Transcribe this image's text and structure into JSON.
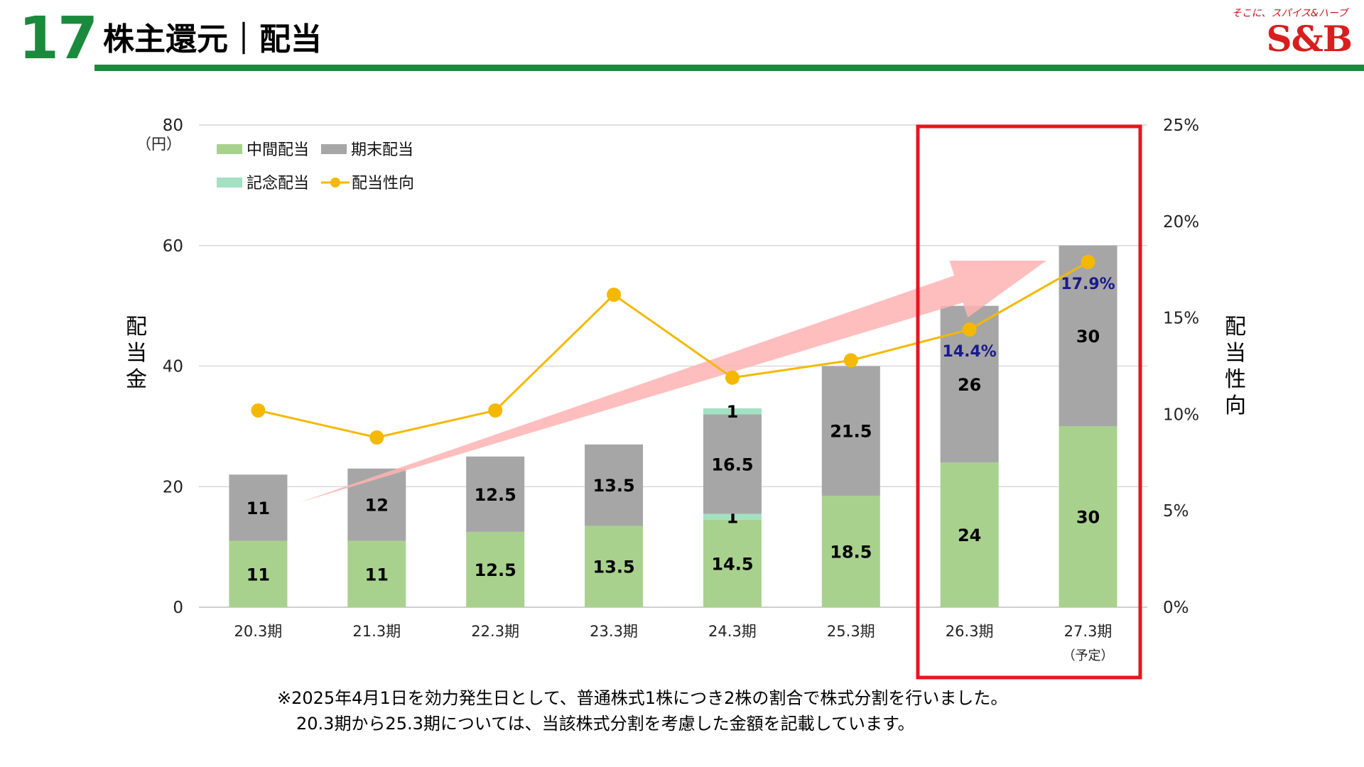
{
  "page_number": "17",
  "title": "株主還元｜配当",
  "logo": {
    "tagline": "そこに、スパイス&ハーブ",
    "brand": "S&B"
  },
  "footnote": {
    "line1": "※2025年4月1日を効力発生日として、普通株式1株につき2株の割合で株式分割を行いました。",
    "line2": "20.3期から25.3期については、当該株式分割を考慮した金額を記載しています。"
  },
  "chart_data": {
    "type": "bar",
    "stacked": true,
    "categories": [
      "20.3期",
      "21.3期",
      "22.3期",
      "23.3期",
      "24.3期",
      "25.3期",
      "26.3期",
      "27.3期"
    ],
    "category_sublabels": [
      "",
      "",
      "",
      "",
      "",
      "",
      "",
      "（予定）"
    ],
    "series": [
      {
        "name": "中間配当",
        "values": [
          11,
          11,
          12.5,
          13.5,
          14.5,
          18.5,
          24,
          30
        ],
        "color": "#a9d18e"
      },
      {
        "name": "記念配当",
        "values": [
          0,
          0,
          0,
          0,
          1,
          0,
          0,
          0
        ],
        "color": "#a3e1c2"
      },
      {
        "name": "期末配当",
        "values": [
          11,
          12,
          12.5,
          13.5,
          16.5,
          21.5,
          26,
          30
        ],
        "color": "#a6a6a6"
      },
      {
        "name": "記念配当",
        "values": [
          0,
          0,
          0,
          0,
          1,
          0,
          0,
          0
        ],
        "color": "#a3e1c2"
      }
    ],
    "payout_ratio": {
      "name": "配当性向",
      "values": [
        10.2,
        8.8,
        10.2,
        16.2,
        11.9,
        12.8,
        14.4,
        17.9
      ],
      "labels": [
        "",
        "",
        "",
        "",
        "",
        "",
        "14.4%",
        "17.9%"
      ],
      "color": "#f5b800",
      "label_color": "#1a1a8c"
    },
    "y_left": {
      "label": "配当金",
      "unit": "（円）",
      "ylim": [
        0,
        80
      ],
      "ticks": [
        "0",
        "20",
        "40",
        "60",
        "80"
      ]
    },
    "y_right": {
      "label": "配当性向",
      "ylim": [
        0,
        25
      ],
      "ticks": [
        "0%",
        "5%",
        "10%",
        "15%",
        "20%",
        "25%"
      ]
    },
    "legend": [
      {
        "name": "中間配当",
        "kind": "box",
        "color": "#a9d18e"
      },
      {
        "name": "期末配当",
        "kind": "box",
        "color": "#a6a6a6"
      },
      {
        "name": "記念配当",
        "kind": "box",
        "color": "#a3e1c2"
      },
      {
        "name": "配当性向",
        "kind": "line",
        "color": "#f5b800"
      }
    ],
    "legend_position": "top-left",
    "grid": true,
    "highlight_color": "#e8161c",
    "trend_arrow_color": "#ffb3b3"
  }
}
